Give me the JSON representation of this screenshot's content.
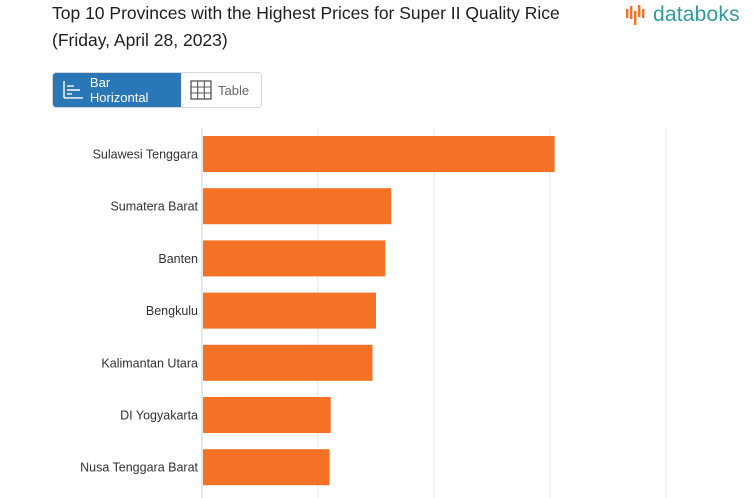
{
  "page": {
    "title": "Top 10 Provinces with the Highest Prices for Super II Quality Rice (Friday, April 28, 2023)",
    "logo_text": "databoks",
    "brand_color": "#2f9c9c",
    "logo_icon": "databoks-logo-icon"
  },
  "view_toggle": {
    "bar_label": "Bar Horizontal",
    "table_label": "Table",
    "selected": "Bar Horizontal",
    "bar_icon": "bar-chart-icon",
    "table_icon": "table-grid-icon",
    "active_color": "#2a77b7"
  },
  "chart_data": {
    "type": "bar",
    "orientation": "horizontal",
    "categories": [
      "Sulawesi Tenggara",
      "Sumatera Barat",
      "Banten",
      "Bengkulu",
      "Kalimantan Utara",
      "DI Yogyakarta",
      "Nusa Tenggara Barat"
    ],
    "values": [
      15200,
      8150,
      7900,
      7500,
      7350,
      5550,
      5500
    ],
    "xlim": [
      0,
      20000
    ],
    "grid": true,
    "bar_color": "#f47126",
    "title": "",
    "xlabel": "",
    "ylabel": ""
  }
}
